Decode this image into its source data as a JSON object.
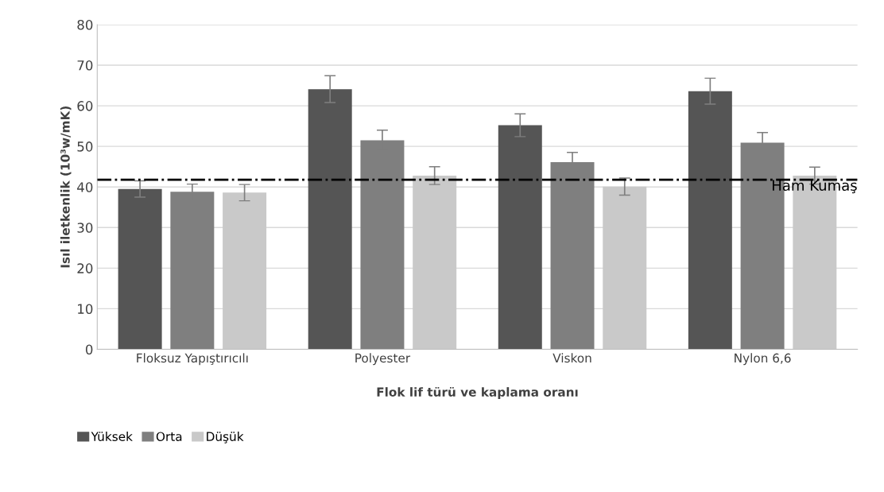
{
  "chart_data": {
    "type": "bar",
    "xlabel": "Flok lif türü ve kaplama oranı",
    "ylabel": "Isıl iletkenlik (10³w/mK)",
    "categories": [
      "Floksuz Yapıştırıcılı",
      "Polyester",
      "Viskon",
      "Nylon 6,6"
    ],
    "series": [
      {
        "name": "Yüksek",
        "color": "#555555",
        "values": [
          39.5,
          64.1,
          55.2,
          63.6
        ],
        "errors": [
          2.0,
          3.3,
          2.8,
          3.2
        ]
      },
      {
        "name": "Orta",
        "color": "#7f7f7f",
        "values": [
          38.8,
          51.5,
          46.1,
          50.9
        ],
        "errors": [
          1.9,
          2.5,
          2.4,
          2.5
        ]
      },
      {
        "name": "Düşük",
        "color": "#c9c9c9",
        "values": [
          38.6,
          42.8,
          40.1,
          42.8
        ],
        "errors": [
          2.0,
          2.2,
          2.1,
          2.1
        ]
      }
    ],
    "ylim": [
      0,
      80
    ],
    "yticks": [
      0,
      10,
      20,
      30,
      40,
      50,
      60,
      70,
      80
    ],
    "grid": "y",
    "legend": "bottom left",
    "ref_lines": [
      {
        "axis": "y",
        "value": 41.8,
        "label": "Ham Kumaş",
        "color": "#000000",
        "line_style": "dashdot"
      }
    ]
  }
}
